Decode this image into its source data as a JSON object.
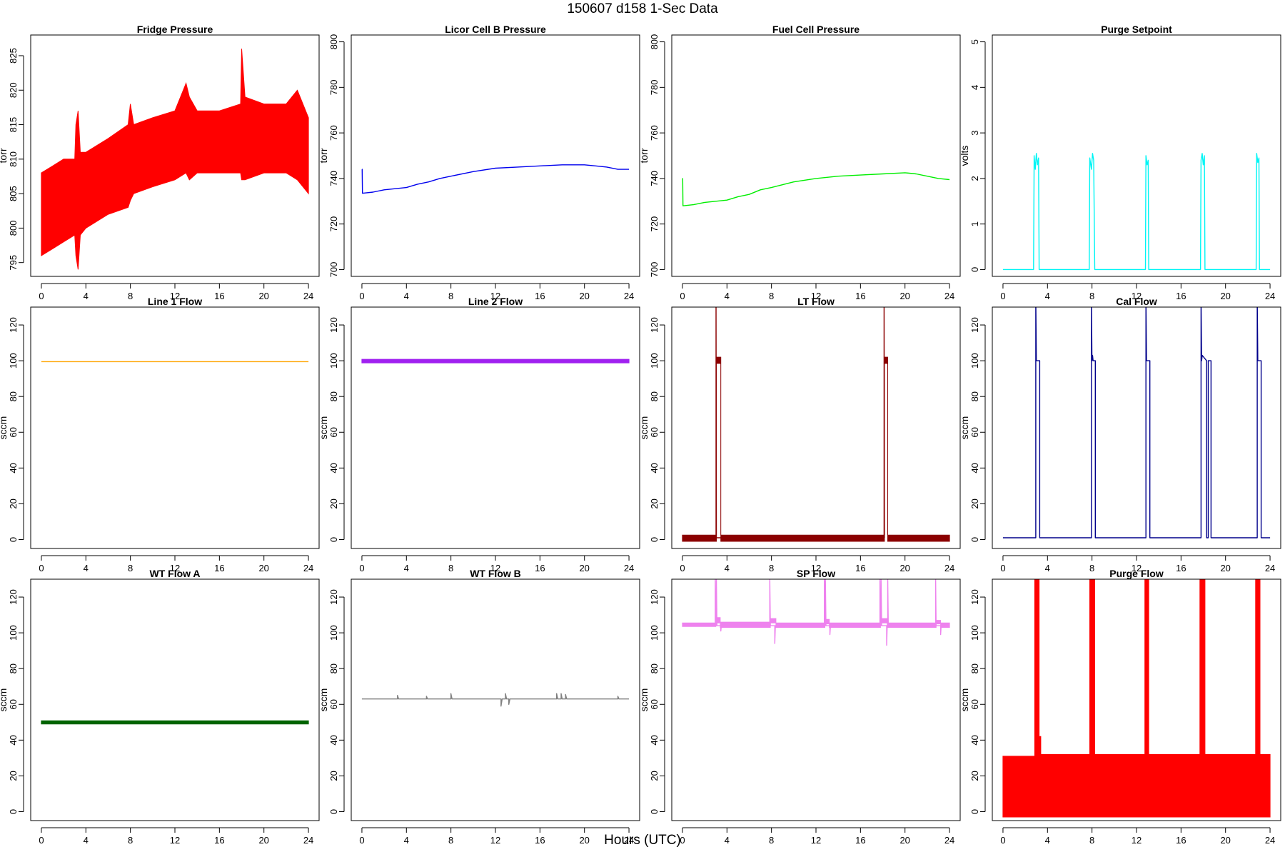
{
  "title": "150607   d158   1-Sec Data",
  "xlabel": "Hours (UTC)",
  "chart_data": [
    {
      "type": "line",
      "title": "Fridge Pressure",
      "ylabel": "torr",
      "color": "#ff0000",
      "xlim": [
        0,
        24
      ],
      "ylim": [
        793,
        828
      ],
      "xticks": [
        0,
        4,
        8,
        12,
        16,
        20,
        24
      ],
      "yticks": [
        795,
        800,
        805,
        810,
        815,
        820,
        825
      ],
      "series": [
        {
          "style": "band",
          "x": [
            0,
            1,
            2,
            3,
            3.1,
            3.3,
            3.5,
            4,
            6,
            7.8,
            8,
            8.3,
            10,
            12,
            13,
            13.3,
            14,
            16,
            17.9,
            18,
            18.3,
            20,
            22,
            23,
            24
          ],
          "low": [
            796,
            797,
            798,
            799,
            796,
            794,
            799,
            800,
            802,
            803,
            804,
            805,
            806,
            807,
            808,
            807,
            808,
            808,
            808,
            807,
            807,
            808,
            808,
            807,
            805
          ],
          "high": [
            808,
            809,
            810,
            810,
            815,
            817,
            811,
            811,
            813,
            815,
            818,
            815,
            816,
            817,
            821,
            819,
            817,
            817,
            818,
            826,
            819,
            818,
            818,
            820,
            816
          ]
        }
      ]
    },
    {
      "type": "line",
      "title": "Licor Cell B Pressure",
      "ylabel": "torr",
      "color": "#0000ee",
      "xlim": [
        0,
        24
      ],
      "ylim": [
        697,
        803
      ],
      "xticks": [
        0,
        4,
        8,
        12,
        16,
        20,
        24
      ],
      "yticks": [
        700,
        720,
        740,
        760,
        780,
        800
      ],
      "series": [
        {
          "style": "line",
          "x": [
            0,
            0.02,
            0.05,
            1,
            2,
            3,
            4,
            5,
            6,
            7,
            8,
            10,
            12,
            14,
            16,
            18,
            20,
            21,
            22,
            23,
            24
          ],
          "y": [
            744,
            744,
            733.5,
            734,
            735,
            735.5,
            736,
            737.5,
            738.5,
            740,
            741,
            743,
            744.5,
            745,
            745.5,
            746,
            746,
            745.5,
            745,
            744,
            744
          ]
        }
      ]
    },
    {
      "type": "line",
      "title": "Fuel Cell Pressure",
      "ylabel": "torr",
      "color": "#00ee00",
      "xlim": [
        0,
        24
      ],
      "ylim": [
        697,
        803
      ],
      "xticks": [
        0,
        4,
        8,
        12,
        16,
        20,
        24
      ],
      "yticks": [
        700,
        720,
        740,
        760,
        780,
        800
      ],
      "series": [
        {
          "style": "line",
          "x": [
            0,
            0.02,
            0.05,
            1,
            2,
            3,
            4,
            5,
            6,
            7,
            8,
            10,
            12,
            14,
            16,
            18,
            20,
            21,
            22,
            23,
            24
          ],
          "y": [
            740,
            740,
            728,
            728.5,
            729.5,
            730,
            730.5,
            732,
            733,
            735,
            736,
            738.5,
            740,
            741,
            741.5,
            742,
            742.5,
            742,
            741,
            740,
            739.5
          ]
        }
      ]
    },
    {
      "type": "line",
      "title": "Purge Setpoint",
      "ylabel": "volts",
      "color": "#00f5f5",
      "xlim": [
        0,
        24
      ],
      "ylim": [
        -0.15,
        5.15
      ],
      "xticks": [
        0,
        4,
        8,
        12,
        16,
        20,
        24
      ],
      "yticks": [
        0,
        1,
        2,
        3,
        4,
        5
      ],
      "series": [
        {
          "style": "line",
          "x": [
            0,
            2.75,
            2.8,
            2.9,
            3.0,
            3.1,
            3.2,
            3.25,
            7.75,
            7.8,
            7.95,
            8.05,
            8.15,
            8.25,
            12.8,
            12.85,
            12.95,
            13.05,
            13.1,
            17.75,
            17.8,
            17.9,
            18.0,
            18.1,
            18.15,
            22.75,
            22.8,
            22.9,
            23.0,
            23.05,
            24
          ],
          "y": [
            0,
            0,
            2.5,
            2.2,
            2.55,
            2.3,
            2.45,
            0,
            0,
            2.45,
            2.2,
            2.55,
            2.4,
            0,
            0,
            2.5,
            2.3,
            2.4,
            0,
            0,
            2.4,
            2.55,
            2.3,
            2.5,
            0,
            0,
            2.55,
            2.35,
            2.45,
            0,
            0
          ]
        }
      ]
    },
    {
      "type": "line",
      "title": "Line 1 Flow",
      "ylabel": "sccm",
      "color": "#ffa500",
      "xlim": [
        0,
        24
      ],
      "ylim": [
        -5,
        130
      ],
      "xticks": [
        0,
        4,
        8,
        12,
        16,
        20,
        24
      ],
      "yticks": [
        0,
        20,
        40,
        60,
        80,
        100,
        120
      ],
      "series": [
        {
          "style": "line",
          "x": [
            0,
            24
          ],
          "y": [
            99.5,
            99.5
          ]
        }
      ]
    },
    {
      "type": "line",
      "title": "Line 2 Flow",
      "ylabel": "sccm",
      "color": "#a020f0",
      "xlim": [
        0,
        24
      ],
      "ylim": [
        -5,
        130
      ],
      "xticks": [
        0,
        4,
        8,
        12,
        16,
        20,
        24
      ],
      "yticks": [
        0,
        20,
        40,
        60,
        80,
        100,
        120
      ],
      "series": [
        {
          "style": "band",
          "x": [
            0,
            24
          ],
          "low": [
            98.8,
            98.8
          ],
          "high": [
            100.8,
            100.8
          ]
        }
      ]
    },
    {
      "type": "line",
      "title": "LT Flow",
      "ylabel": "sccm",
      "color": "#8b0000",
      "xlim": [
        0,
        24
      ],
      "ylim": [
        -5,
        130
      ],
      "xticks": [
        0,
        4,
        8,
        12,
        16,
        20,
        24
      ],
      "yticks": [
        0,
        20,
        40,
        60,
        80,
        100,
        120
      ],
      "series": [
        {
          "style": "band",
          "x": [
            0,
            3.05,
            3.05,
            3.45,
            3.45,
            18.15,
            18.15,
            18.45,
            18.45,
            24
          ],
          "low": [
            -1,
            -1,
            98.5,
            98.5,
            -1,
            -1,
            98.5,
            98.5,
            -1,
            -1
          ],
          "high": [
            2.5,
            2.5,
            102,
            102,
            2.5,
            2.5,
            102,
            102,
            2.5,
            2.5
          ]
        },
        {
          "style": "line",
          "x": [
            3.02,
            3.02,
            3.05,
            18.12,
            18.12,
            18.15
          ],
          "y": [
            1,
            135,
            1,
            1,
            135,
            1
          ]
        }
      ]
    },
    {
      "type": "line",
      "title": "Cal Flow",
      "ylabel": "sccm",
      "color": "#00008b",
      "xlim": [
        0,
        24
      ],
      "ylim": [
        -5,
        130
      ],
      "xticks": [
        0,
        4,
        8,
        12,
        16,
        20,
        24
      ],
      "yticks": [
        0,
        20,
        40,
        60,
        80,
        100,
        120
      ],
      "series": [
        {
          "style": "line",
          "x": [
            0,
            2.95,
            2.95,
            3.0,
            3.0,
            3.3,
            3.3,
            7.95,
            7.95,
            8.0,
            8.05,
            8.1,
            8.3,
            8.3,
            12.85,
            12.85,
            12.9,
            12.9,
            13.2,
            13.2,
            17.8,
            17.8,
            17.85,
            17.9,
            18.3,
            18.3,
            18.45,
            18.45,
            18.7,
            18.7,
            22.85,
            22.85,
            22.9,
            22.9,
            23.2,
            23.2,
            24
          ],
          "y": [
            1,
            1,
            135,
            100,
            100,
            100,
            1,
            1,
            135,
            100,
            103,
            100,
            100,
            1,
            1,
            135,
            100,
            100,
            100,
            1,
            1,
            135,
            100,
            103,
            100,
            1,
            1,
            100,
            100,
            1,
            1,
            135,
            100,
            100,
            100,
            1,
            1
          ]
        }
      ]
    },
    {
      "type": "line",
      "title": "WT Flow A",
      "ylabel": "sccm",
      "color": "#006400",
      "xlim": [
        0,
        24
      ],
      "ylim": [
        -5,
        130
      ],
      "xticks": [
        0,
        4,
        8,
        12,
        16,
        20,
        24
      ],
      "yticks": [
        0,
        20,
        40,
        60,
        80,
        100,
        120
      ],
      "series": [
        {
          "style": "band",
          "x": [
            0,
            24
          ],
          "low": [
            49,
            49
          ],
          "high": [
            50.8,
            50.8
          ]
        }
      ]
    },
    {
      "type": "line",
      "title": "WT Flow B",
      "ylabel": "sccm",
      "color": "#808080",
      "xlim": [
        0,
        24
      ],
      "ylim": [
        -5,
        130
      ],
      "xticks": [
        0,
        4,
        8,
        12,
        16,
        20,
        24
      ],
      "yticks": [
        0,
        20,
        40,
        60,
        80,
        100,
        120
      ],
      "series": [
        {
          "style": "line",
          "x": [
            0,
            3.2,
            3.2,
            3.3,
            5.8,
            5.8,
            5.9,
            8.0,
            8.0,
            8.1,
            12.5,
            12.5,
            12.6,
            12.9,
            12.9,
            13.0,
            13.2,
            13.2,
            13.3,
            17.5,
            17.5,
            17.6,
            17.9,
            17.9,
            18.0,
            18.3,
            18.3,
            18.4,
            23.0,
            23.0,
            23.1,
            24
          ],
          "y": [
            63,
            63,
            65,
            63,
            63,
            64.5,
            63,
            63,
            66,
            63,
            63,
            59,
            63,
            63,
            66,
            63,
            63,
            60,
            63,
            63,
            66,
            63,
            63,
            66,
            63,
            63,
            65.5,
            63,
            63,
            64.5,
            63,
            63
          ]
        }
      ]
    },
    {
      "type": "line",
      "title": "SP Flow",
      "ylabel": "sccm",
      "color": "#ee82ee",
      "xlim": [
        0,
        24
      ],
      "ylim": [
        -5,
        130
      ],
      "xticks": [
        0,
        4,
        8,
        12,
        16,
        20,
        24
      ],
      "yticks": [
        0,
        20,
        40,
        60,
        80,
        100,
        120
      ],
      "series": [
        {
          "style": "band",
          "x": [
            0,
            3.0,
            3.0,
            3.4,
            3.4,
            7.9,
            7.9,
            8.4,
            8.4,
            12.8,
            12.8,
            13.2,
            13.2,
            17.8,
            17.8,
            18.4,
            18.4,
            22.8,
            22.8,
            23.2,
            23.2,
            24
          ],
          "low": [
            103.5,
            103.5,
            105.5,
            105.5,
            103,
            103,
            105.5,
            105.5,
            103,
            103,
            105,
            105,
            103,
            103,
            105.5,
            105.5,
            103,
            103,
            105,
            105,
            103,
            103
          ],
          "high": [
            105.5,
            105.5,
            108.5,
            108.5,
            106,
            106,
            108,
            108,
            105.5,
            105.5,
            107.5,
            107.5,
            105.5,
            105.5,
            108,
            108,
            105.5,
            105.5,
            107,
            107,
            105.5,
            105.5
          ]
        },
        {
          "style": "line",
          "x": [
            2.95,
            2.95,
            3.0,
            3.05,
            3.05,
            3.1,
            3.45,
            3.45,
            3.5,
            7.85,
            7.85,
            7.9,
            8.3,
            8.3,
            8.35,
            12.75,
            12.75,
            12.8,
            12.85,
            12.85,
            12.9,
            13.25,
            13.25,
            13.3,
            17.75,
            17.75,
            17.8,
            17.85,
            17.85,
            17.9,
            18.35,
            18.35,
            18.4,
            18.45,
            18.45,
            18.5,
            22.75,
            22.75,
            22.8,
            23.2,
            23.2,
            23.25
          ],
          "y": [
            104,
            130,
            104,
            104,
            130,
            104,
            104,
            101,
            104,
            104,
            130,
            104,
            104,
            94,
            104,
            104,
            130,
            104,
            104,
            130,
            104,
            104,
            99,
            104,
            104,
            130,
            104,
            104,
            130,
            104,
            104,
            93,
            104,
            104,
            130,
            104,
            104,
            130,
            104,
            104,
            99,
            104
          ]
        }
      ]
    },
    {
      "type": "line",
      "title": "Purge Flow",
      "ylabel": "sccm",
      "color": "#ff0000",
      "xlim": [
        0,
        24
      ],
      "ylim": [
        -5,
        130
      ],
      "xticks": [
        0,
        4,
        8,
        12,
        16,
        20,
        24
      ],
      "yticks": [
        0,
        20,
        40,
        60,
        80,
        100,
        120
      ],
      "series": [
        {
          "style": "band",
          "x": [
            0,
            2.85,
            2.85,
            3.25,
            3.25,
            3.4,
            3.4,
            7.8,
            7.8,
            8.25,
            8.25,
            12.75,
            12.75,
            13.1,
            13.1,
            17.7,
            17.7,
            18.15,
            18.15,
            22.7,
            22.7,
            23.1,
            23.1,
            24
          ],
          "low": [
            -3,
            -3,
            -3,
            -3,
            -3,
            -3,
            -3,
            -3,
            -3,
            -3,
            -3,
            -3,
            -3,
            -3,
            -3,
            -3,
            -3,
            -3,
            -3,
            -3,
            -3,
            -3,
            -3,
            -3
          ],
          "high": [
            31,
            31,
            130,
            130,
            42,
            42,
            32,
            32,
            130,
            130,
            32,
            32,
            130,
            130,
            32,
            32,
            130,
            130,
            32,
            32,
            130,
            130,
            32,
            32
          ]
        }
      ]
    }
  ]
}
